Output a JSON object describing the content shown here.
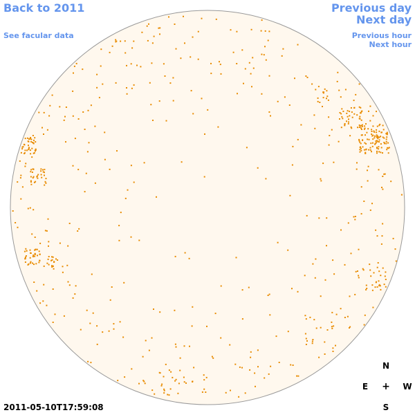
{
  "nav": {
    "back_label": "Back to 2011",
    "facular_label": "See facular data",
    "prev_day_label": "Previous day",
    "next_day_label": "Next day",
    "prev_hour_label": "Previous hour",
    "next_hour_label": "Next hour"
  },
  "timestamp": "2011-05-10T17:59:08",
  "compass": {
    "north": "N",
    "south": "S",
    "east": "E",
    "west": "W",
    "center": "+"
  },
  "colors": {
    "link": "#6495ED",
    "disk_fill": "#FFF8EE",
    "disk_outline": "#999999",
    "facula": "#E88B00"
  },
  "icons": [
    "sun-disk-image",
    "compass-rose"
  ]
}
